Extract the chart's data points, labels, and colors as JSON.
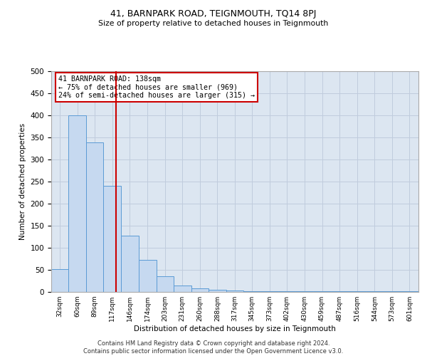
{
  "title": "41, BARNPARK ROAD, TEIGNMOUTH, TQ14 8PJ",
  "subtitle": "Size of property relative to detached houses in Teignmouth",
  "xlabel": "Distribution of detached houses by size in Teignmouth",
  "ylabel": "Number of detached properties",
  "bin_labels": [
    "32sqm",
    "60sqm",
    "89sqm",
    "117sqm",
    "146sqm",
    "174sqm",
    "203sqm",
    "231sqm",
    "260sqm",
    "288sqm",
    "317sqm",
    "345sqm",
    "373sqm",
    "402sqm",
    "430sqm",
    "459sqm",
    "487sqm",
    "516sqm",
    "544sqm",
    "573sqm",
    "601sqm"
  ],
  "bin_edges": [
    32,
    60,
    89,
    117,
    146,
    174,
    203,
    231,
    260,
    288,
    317,
    345,
    373,
    402,
    430,
    459,
    487,
    516,
    544,
    573,
    601,
    630
  ],
  "bar_heights": [
    52,
    400,
    338,
    240,
    128,
    72,
    35,
    15,
    8,
    5,
    3,
    2,
    1,
    1,
    1,
    1,
    1,
    1,
    1,
    1,
    1
  ],
  "bar_color": "#c6d9f0",
  "bar_edge_color": "#5b9bd5",
  "property_size": 138,
  "vline_color": "#cc0000",
  "annotation_text": "41 BARNPARK ROAD: 138sqm\n← 75% of detached houses are smaller (969)\n24% of semi-detached houses are larger (315) →",
  "annotation_box_color": "#cc0000",
  "ylim": [
    0,
    500
  ],
  "yticks": [
    0,
    50,
    100,
    150,
    200,
    250,
    300,
    350,
    400,
    450,
    500
  ],
  "grid_color": "#c0ccdd",
  "background_color": "#dce6f1",
  "footer_line1": "Contains HM Land Registry data © Crown copyright and database right 2024.",
  "footer_line2": "Contains public sector information licensed under the Open Government Licence v3.0."
}
